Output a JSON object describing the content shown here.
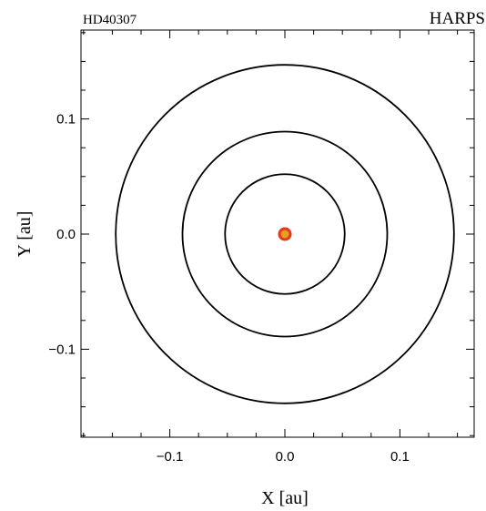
{
  "chart_data": {
    "type": "scatter",
    "title": "HD40307",
    "subtitle": "HARPS",
    "xlabel": "X [au]",
    "ylabel": "Y [au]",
    "xlim": [
      -0.175,
      0.175
    ],
    "ylim": [
      -0.175,
      0.175
    ],
    "xticks": [
      -0.1,
      0.0,
      0.1
    ],
    "yticks": [
      -0.1,
      0.0,
      0.1
    ],
    "xtick_labels": [
      "−0.1",
      "0.0",
      "0.1"
    ],
    "ytick_labels": [
      "−0.1",
      "0.0",
      "0.1"
    ],
    "grid": false,
    "orbits": [
      {
        "radius": 0.052
      },
      {
        "radius": 0.089
      },
      {
        "radius": 0.147
      }
    ],
    "star": {
      "x": 0.0,
      "y": 0.0,
      "color": "#e8a020",
      "edge_color": "#e03a1a"
    },
    "orbit_color": "#000000"
  }
}
